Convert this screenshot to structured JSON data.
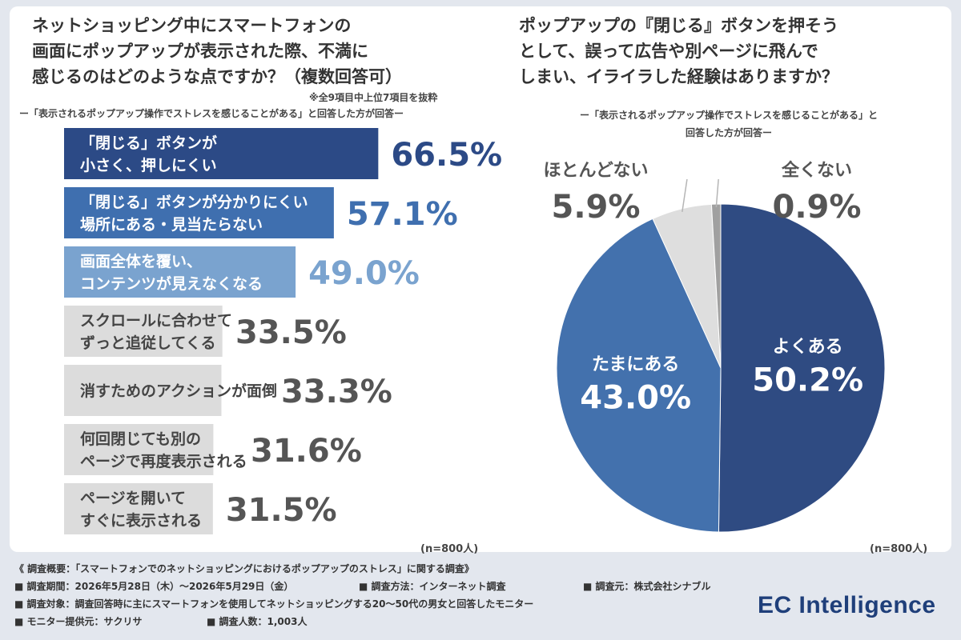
{
  "left": {
    "title_lines": [
      "ネットショッピング中にスマートフォンの",
      "画面にポップアップが表示された際、不満に",
      "感じるのはどのような点ですか？（複数回答可）"
    ],
    "note": "※全9項目中上位7項目を抜粋",
    "subtitle": "ー「表示されるポップアップ操作でストレスを感じることがある」と回答した方が回答ー",
    "n_label": "(n=800人)"
  },
  "right": {
    "title_lines": [
      "ポップアップの『閉じる』ボタンを押そう",
      "として、誤って広告や別ページに飛んで",
      "しまい、イライラした経験はありますか？"
    ],
    "subtitle_lines": [
      "ー「表示されるポップアップ操作でストレスを感じることがある」と",
      "回答した方が回答ー"
    ],
    "n_label": "(n=800人)"
  },
  "chart_data": [
    {
      "type": "bar",
      "orientation": "horizontal",
      "categories": [
        [
          "「閉じる」ボタンが",
          "小さく、押しにくい"
        ],
        [
          "「閉じる」ボタンが分かりにくい",
          "場所にある・見当たらない"
        ],
        [
          "画面全体を覆い、",
          "コンテンツが見えなくなる"
        ],
        [
          "スクロールに合わせて",
          "ずっと追従してくる"
        ],
        [
          "消すためのアクションが面倒"
        ],
        [
          "何回閉じても別の",
          "ページで再度表示される"
        ],
        [
          "ページを開いて",
          "すぐに表示される"
        ]
      ],
      "values": [
        66.5,
        57.1,
        49.0,
        33.5,
        33.3,
        31.6,
        31.5
      ],
      "value_labels": [
        "66.5%",
        "57.1%",
        "49.0%",
        "33.5%",
        "33.3%",
        "31.6%",
        "31.5%"
      ],
      "colors": [
        "#2c4a86",
        "#3f6faf",
        "#7aa3cf",
        "#dcdcdc",
        "#dcdcdc",
        "#dcdcdc",
        "#dcdcdc"
      ],
      "label_colors": [
        "#ffffff",
        "#ffffff",
        "#ffffff",
        "#444444",
        "#444444",
        "#444444",
        "#444444"
      ],
      "value_colors": [
        "#2c4a86",
        "#3f6faf",
        "#7aa3cf",
        "#555555",
        "#555555",
        "#555555",
        "#555555"
      ],
      "unit": "%"
    },
    {
      "type": "pie",
      "labels": [
        "よくある",
        "たまにある",
        "ほとんどない",
        "全くない"
      ],
      "values": [
        50.2,
        43.0,
        5.9,
        0.9
      ],
      "value_labels": [
        "50.2%",
        "43.0%",
        "5.9%",
        "0.9%"
      ],
      "colors": [
        "#2f4b82",
        "#4371ad",
        "#dedede",
        "#a0a0a0"
      ],
      "start": "12 o'clock, clockwise"
    }
  ],
  "footer": {
    "heading": "《 調査概要：「スマートフォンでのネットショッピングにおけるポップアップのストレス」に関する調査》",
    "rows": [
      [
        "■ 調査期間：2026年5月28日（木）〜2026年5月29日（金）",
        "■ 調査方法：インターネット調査",
        "■ 調査元：株式会社シナブル"
      ],
      [
        "■ 調査対象：調査回答時に主にスマートフォンを使用してネットショッピングする20〜50代の男女と回答したモニター"
      ],
      [
        "■ モニター提供元：サクリサ",
        "■ 調査人数：1,003人"
      ]
    ]
  },
  "logo": "EC Intelligence"
}
